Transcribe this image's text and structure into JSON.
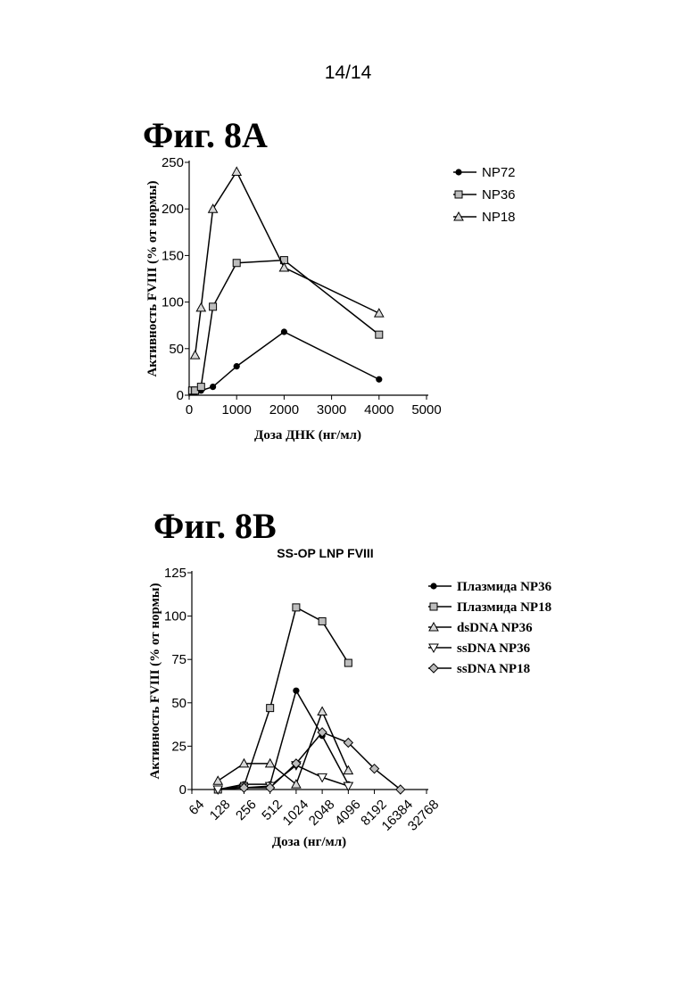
{
  "page": {
    "number": "14/14"
  },
  "chart_data": [
    {
      "id": "fig8a",
      "figure_label": "Фиг. 8A",
      "type": "line",
      "title": "",
      "xlabel": "Доза ДНК (нг/мл)",
      "ylabel": "Активность FVIII (% от нормы)",
      "xlim": [
        0,
        5000
      ],
      "ylim": [
        0,
        250
      ],
      "x_ticks": [
        "0",
        "1000",
        "2000",
        "3000",
        "4000",
        "5000"
      ],
      "y_ticks": [
        "0",
        "50",
        "100",
        "150",
        "200",
        "250"
      ],
      "legend_position": "right",
      "series": [
        {
          "name": "NP72",
          "marker": "circle",
          "x": [
            62.5,
            125,
            250,
            500,
            1000,
            2000,
            4000
          ],
          "y": [
            3,
            3,
            5,
            9,
            31,
            68,
            17
          ]
        },
        {
          "name": "NP36",
          "marker": "square",
          "x": [
            62.5,
            125,
            250,
            500,
            1000,
            2000,
            4000
          ],
          "y": [
            5,
            5,
            9,
            95,
            142,
            145,
            65
          ]
        },
        {
          "name": "NP18",
          "marker": "triangle-up",
          "x": [
            125,
            250,
            500,
            1000,
            2000,
            4000
          ],
          "y": [
            43,
            94,
            200,
            240,
            137,
            88
          ]
        }
      ]
    },
    {
      "id": "fig8b",
      "figure_label": "Фиг. 8B",
      "type": "line",
      "title": "SS-OP LNP FVIII",
      "xlabel": "Доза (нг/мл)",
      "ylabel": "Активность FVIII (% от нормы)",
      "x_scale": "log2",
      "xlim": [
        64,
        32768
      ],
      "ylim": [
        0,
        125
      ],
      "x_ticks": [
        "64",
        "128",
        "256",
        "512",
        "1024",
        "2048",
        "4096",
        "8192",
        "16384",
        "32768"
      ],
      "y_ticks": [
        "0",
        "25",
        "50",
        "75",
        "100",
        "125"
      ],
      "legend_position": "right",
      "series": [
        {
          "name": "Плазмида NP36",
          "marker": "circle",
          "x": [
            128,
            256,
            512,
            1024,
            2048,
            4096
          ],
          "y": [
            0,
            3,
            3,
            57,
            31,
            3
          ]
        },
        {
          "name": "Плазмида NP18",
          "marker": "square",
          "x": [
            128,
            256,
            512,
            1024,
            2048,
            4096
          ],
          "y": [
            0,
            2,
            47,
            105,
            97,
            73
          ]
        },
        {
          "name": "dsDNA NP36",
          "marker": "triangle-up",
          "x": [
            128,
            256,
            512,
            1024,
            2048,
            4096
          ],
          "y": [
            5,
            15,
            15,
            3,
            45,
            11
          ]
        },
        {
          "name": "ssDNA NP36",
          "marker": "triangle-down",
          "x": [
            128,
            256,
            512,
            1024,
            2048,
            4096
          ],
          "y": [
            0,
            1,
            2,
            14,
            7,
            2
          ]
        },
        {
          "name": "ssDNA NP18",
          "marker": "diamond",
          "x": [
            256,
            512,
            1024,
            2048,
            4096,
            8192,
            16384
          ],
          "y": [
            1,
            1,
            15,
            33,
            27,
            12,
            0
          ]
        }
      ]
    }
  ]
}
